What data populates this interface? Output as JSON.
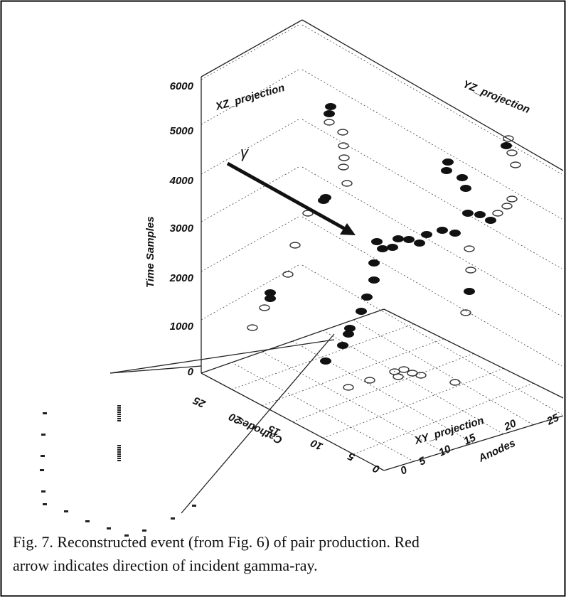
{
  "figure": {
    "z_axis": {
      "label": "Time Samples",
      "ticks": [
        "0",
        "1000",
        "2000",
        "3000",
        "4000",
        "5000",
        "6000"
      ]
    },
    "cathode_axis": {
      "label": "Cathodes",
      "ticks": [
        "0",
        "5",
        "10",
        "15",
        "20",
        "25"
      ]
    },
    "anode_axis": {
      "label": "Anodes",
      "ticks": [
        "0",
        "5",
        "10",
        "15",
        "20",
        "25"
      ]
    },
    "panels": [
      "XZ_projection",
      "YZ_projection",
      "XY_projection"
    ],
    "arrow_label": "γ"
  },
  "caption": {
    "lines": [
      "Fig. 7. Reconstructed event (from Fig. 6) of pair production.  Red",
      "arrow indicates direction of incident gamma-ray."
    ]
  }
}
